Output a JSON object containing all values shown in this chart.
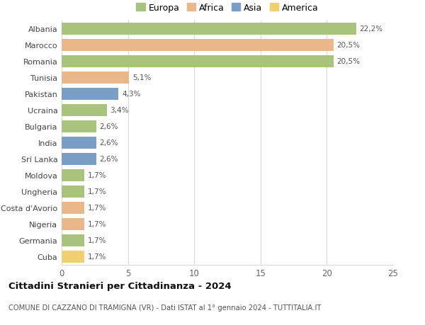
{
  "countries": [
    "Albania",
    "Marocco",
    "Romania",
    "Tunisia",
    "Pakistan",
    "Ucraina",
    "Bulgaria",
    "India",
    "Sri Lanka",
    "Moldova",
    "Ungheria",
    "Costa d'Avorio",
    "Nigeria",
    "Germania",
    "Cuba"
  ],
  "values": [
    22.2,
    20.5,
    20.5,
    5.1,
    4.3,
    3.4,
    2.6,
    2.6,
    2.6,
    1.7,
    1.7,
    1.7,
    1.7,
    1.7,
    1.7
  ],
  "labels": [
    "22,2%",
    "20,5%",
    "20,5%",
    "5,1%",
    "4,3%",
    "3,4%",
    "2,6%",
    "2,6%",
    "2,6%",
    "1,7%",
    "1,7%",
    "1,7%",
    "1,7%",
    "1,7%",
    "1,7%"
  ],
  "continents": [
    "Europa",
    "Africa",
    "Europa",
    "Africa",
    "Asia",
    "Europa",
    "Europa",
    "Asia",
    "Asia",
    "Europa",
    "Europa",
    "Africa",
    "Africa",
    "Europa",
    "America"
  ],
  "colors": {
    "Europa": "#a8c47c",
    "Africa": "#e8b88a",
    "Asia": "#7b9ec7",
    "America": "#f0d070"
  },
  "legend_order": [
    "Europa",
    "Africa",
    "Asia",
    "America"
  ],
  "title": "Cittadini Stranieri per Cittadinanza - 2024",
  "subtitle": "COMUNE DI CAZZANO DI TRAMIGNA (VR) - Dati ISTAT al 1° gennaio 2024 - TUTTITALIA.IT",
  "xlim": [
    0,
    25
  ],
  "xticks": [
    0,
    5,
    10,
    15,
    20,
    25
  ],
  "bg_color": "#ffffff",
  "grid_color": "#d8d8d8",
  "bar_height": 0.75,
  "figsize": [
    6.0,
    4.6
  ],
  "dpi": 100
}
